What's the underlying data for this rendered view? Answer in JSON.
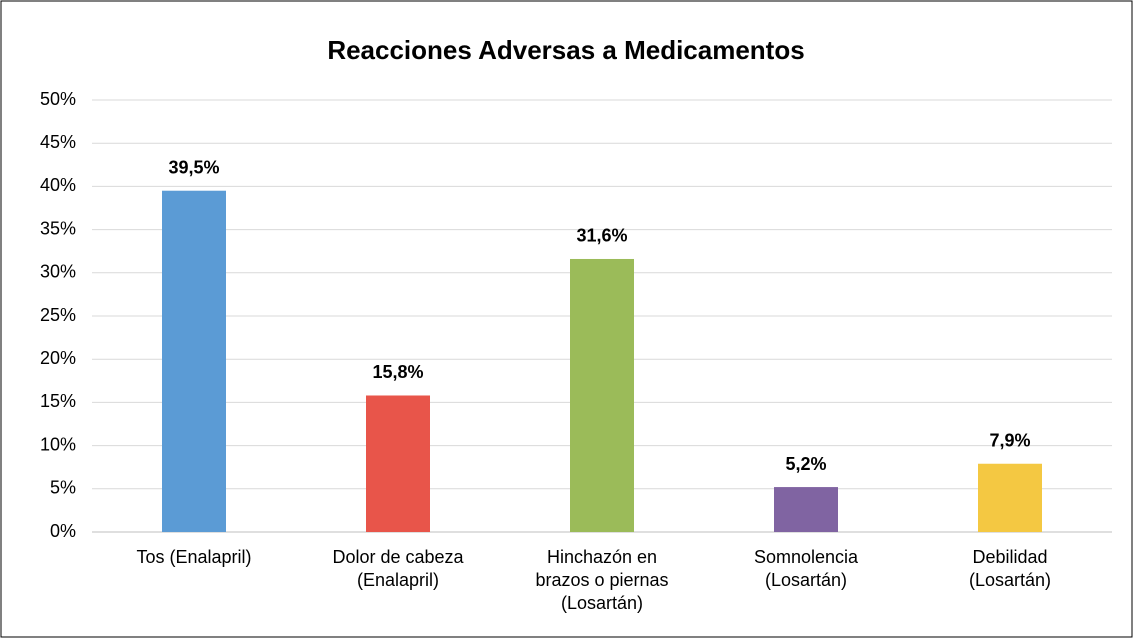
{
  "chart_data": {
    "type": "bar",
    "title": "Reacciones Adversas a Medicamentos",
    "categories": [
      "Tos (Enalapril)",
      "Dolor de cabeza (Enalapril)",
      "Hinchazón en brazos o piernas (Losartán)",
      "Somnolencia (Losartán)",
      "Debilidad (Losartán)"
    ],
    "values": [
      39.5,
      15.8,
      31.6,
      5.2,
      7.9
    ],
    "value_labels": [
      "39,5%",
      "15,8%",
      "31,6%",
      "5,2%",
      "7,9%"
    ],
    "colors": [
      "#5b9bd5",
      "#e8554a",
      "#9bbb59",
      "#8064a2",
      "#f4c842"
    ],
    "ylim": [
      0,
      50
    ],
    "yticks": [
      {
        "value": 0,
        "label": "0%"
      },
      {
        "value": 5,
        "label": "5%"
      },
      {
        "value": 10,
        "label": "10%"
      },
      {
        "value": 15,
        "label": "15%"
      },
      {
        "value": 20,
        "label": "20%"
      },
      {
        "value": 25,
        "label": "25%"
      },
      {
        "value": 30,
        "label": "30%"
      },
      {
        "value": 35,
        "label": "35%"
      },
      {
        "value": 40,
        "label": "40%"
      },
      {
        "value": 45,
        "label": "45%"
      },
      {
        "value": 50,
        "label": "50%"
      }
    ],
    "grid": true
  }
}
